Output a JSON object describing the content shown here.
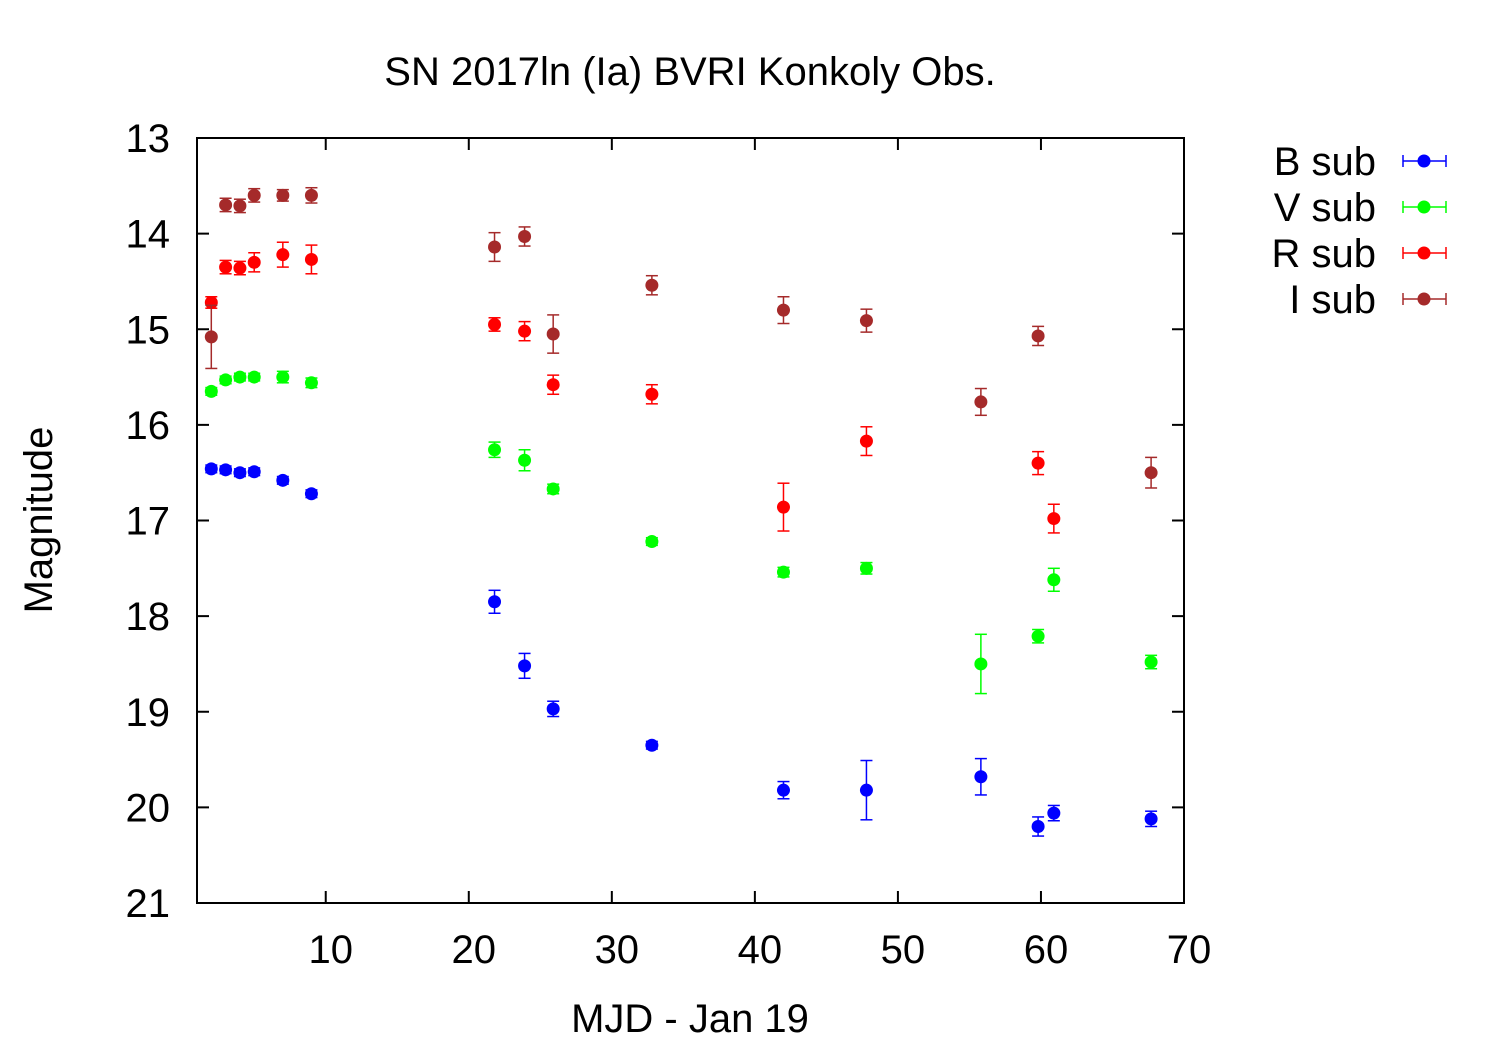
{
  "chart_data": {
    "type": "scatter",
    "title": "SN 2017ln (Ia) BVRI Konkoly Obs.",
    "xlabel": "MJD - Jan 19",
    "ylabel": "Magnitude",
    "xlim": [
      1,
      70
    ],
    "ylim": [
      13,
      21
    ],
    "y_inverted": true,
    "x_ticks": [
      10,
      20,
      30,
      40,
      50,
      60,
      70
    ],
    "y_ticks": [
      13,
      14,
      15,
      16,
      17,
      18,
      19,
      20,
      21
    ],
    "grid": false,
    "legend_position": "outside-top-right",
    "series": [
      {
        "name": "B sub",
        "color": "#0000ff",
        "points": [
          {
            "x": 2.0,
            "y": 16.46,
            "err": 0.04
          },
          {
            "x": 3.0,
            "y": 16.47,
            "err": 0.04
          },
          {
            "x": 4.0,
            "y": 16.5,
            "err": 0.04
          },
          {
            "x": 5.0,
            "y": 16.49,
            "err": 0.04
          },
          {
            "x": 7.0,
            "y": 16.58,
            "err": 0.04
          },
          {
            "x": 9.0,
            "y": 16.72,
            "err": 0.04
          },
          {
            "x": 21.8,
            "y": 17.85,
            "err": 0.12
          },
          {
            "x": 23.9,
            "y": 18.52,
            "err": 0.13
          },
          {
            "x": 25.9,
            "y": 18.97,
            "err": 0.08
          },
          {
            "x": 32.8,
            "y": 19.35,
            "err": 0.04
          },
          {
            "x": 42.0,
            "y": 19.82,
            "err": 0.09
          },
          {
            "x": 47.8,
            "y": 19.82,
            "err": 0.31
          },
          {
            "x": 55.8,
            "y": 19.68,
            "err": 0.19
          },
          {
            "x": 59.8,
            "y": 20.2,
            "err": 0.1
          },
          {
            "x": 60.9,
            "y": 20.06,
            "err": 0.08
          },
          {
            "x": 67.7,
            "y": 20.12,
            "err": 0.08
          }
        ]
      },
      {
        "name": "V sub",
        "color": "#00ff00",
        "points": [
          {
            "x": 2.0,
            "y": 15.65,
            "err": 0.04
          },
          {
            "x": 3.0,
            "y": 15.53,
            "err": 0.04
          },
          {
            "x": 4.0,
            "y": 15.5,
            "err": 0.04
          },
          {
            "x": 5.0,
            "y": 15.5,
            "err": 0.04
          },
          {
            "x": 7.0,
            "y": 15.5,
            "err": 0.06
          },
          {
            "x": 9.0,
            "y": 15.56,
            "err": 0.05
          },
          {
            "x": 21.8,
            "y": 16.26,
            "err": 0.08
          },
          {
            "x": 23.9,
            "y": 16.37,
            "err": 0.11
          },
          {
            "x": 25.9,
            "y": 16.67,
            "err": 0.05
          },
          {
            "x": 32.8,
            "y": 17.22,
            "err": 0.04
          },
          {
            "x": 42.0,
            "y": 17.54,
            "err": 0.05
          },
          {
            "x": 47.8,
            "y": 17.5,
            "err": 0.06
          },
          {
            "x": 55.8,
            "y": 18.5,
            "err": 0.31
          },
          {
            "x": 59.8,
            "y": 18.21,
            "err": 0.07
          },
          {
            "x": 60.9,
            "y": 17.62,
            "err": 0.12
          },
          {
            "x": 67.7,
            "y": 18.48,
            "err": 0.07
          }
        ]
      },
      {
        "name": "R sub",
        "color": "#ff0000",
        "points": [
          {
            "x": 2.0,
            "y": 14.72,
            "err": 0.06
          },
          {
            "x": 3.0,
            "y": 14.35,
            "err": 0.07
          },
          {
            "x": 4.0,
            "y": 14.36,
            "err": 0.07
          },
          {
            "x": 5.0,
            "y": 14.3,
            "err": 0.1
          },
          {
            "x": 7.0,
            "y": 14.22,
            "err": 0.13
          },
          {
            "x": 9.0,
            "y": 14.27,
            "err": 0.15
          },
          {
            "x": 21.8,
            "y": 14.95,
            "err": 0.07
          },
          {
            "x": 23.9,
            "y": 15.02,
            "err": 0.1
          },
          {
            "x": 25.9,
            "y": 15.58,
            "err": 0.1
          },
          {
            "x": 32.8,
            "y": 15.68,
            "err": 0.1
          },
          {
            "x": 42.0,
            "y": 16.86,
            "err": 0.25
          },
          {
            "x": 47.8,
            "y": 16.17,
            "err": 0.15
          },
          {
            "x": 59.8,
            "y": 16.4,
            "err": 0.12
          },
          {
            "x": 60.9,
            "y": 16.98,
            "err": 0.15
          }
        ]
      },
      {
        "name": "I sub",
        "color": "#a52a2a",
        "points": [
          {
            "x": 2.0,
            "y": 15.08,
            "err": 0.33
          },
          {
            "x": 3.0,
            "y": 13.7,
            "err": 0.07
          },
          {
            "x": 4.0,
            "y": 13.71,
            "err": 0.07
          },
          {
            "x": 5.0,
            "y": 13.6,
            "err": 0.07
          },
          {
            "x": 7.0,
            "y": 13.6,
            "err": 0.06
          },
          {
            "x": 9.0,
            "y": 13.6,
            "err": 0.08
          },
          {
            "x": 21.8,
            "y": 14.14,
            "err": 0.15
          },
          {
            "x": 23.9,
            "y": 14.03,
            "err": 0.1
          },
          {
            "x": 25.9,
            "y": 15.05,
            "err": 0.2
          },
          {
            "x": 32.8,
            "y": 14.54,
            "err": 0.1
          },
          {
            "x": 42.0,
            "y": 14.8,
            "err": 0.14
          },
          {
            "x": 47.8,
            "y": 14.91,
            "err": 0.12
          },
          {
            "x": 55.8,
            "y": 15.76,
            "err": 0.14
          },
          {
            "x": 59.8,
            "y": 15.07,
            "err": 0.1
          },
          {
            "x": 67.7,
            "y": 16.5,
            "err": 0.16
          }
        ]
      }
    ]
  }
}
